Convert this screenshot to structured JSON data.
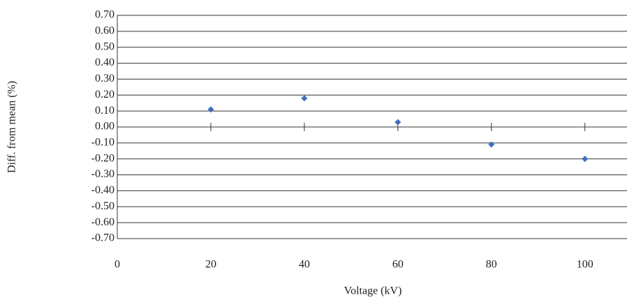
{
  "chart_data": {
    "type": "scatter",
    "x_label": "Voltage (kV)",
    "y_label": "Diff. from mean (%)",
    "x": [
      20,
      40,
      60,
      80,
      100
    ],
    "values": [
      0.11,
      0.18,
      0.03,
      -0.11,
      -0.2
    ],
    "color": "#3e6fc0",
    "xlim": [
      0,
      109
    ],
    "xticks": [
      0,
      20,
      40,
      60,
      80,
      100
    ],
    "ylim": [
      -0.7,
      0.7
    ],
    "yticks": [
      {
        "value": 0.7,
        "label": "0.70"
      },
      {
        "value": 0.6,
        "label": "0.60"
      },
      {
        "value": 0.5,
        "label": "0.50"
      },
      {
        "value": 0.4,
        "label": "0.40"
      },
      {
        "value": 0.3,
        "label": "0.30"
      },
      {
        "value": 0.2,
        "label": "0.20"
      },
      {
        "value": 0.1,
        "label": "0.10"
      },
      {
        "value": 0,
        "label": "0.00"
      },
      {
        "value": -0.1,
        "label": "-0.10"
      },
      {
        "value": -0.2,
        "label": "-0.20"
      },
      {
        "value": -0.3,
        "label": "-0.30"
      },
      {
        "value": -0.4,
        "label": "-0.40"
      },
      {
        "value": -0.5,
        "label": "-0.50"
      },
      {
        "value": -0.6,
        "label": "-0.60"
      },
      {
        "value": -0.7,
        "label": "-0.70"
      }
    ],
    "grid": true
  }
}
